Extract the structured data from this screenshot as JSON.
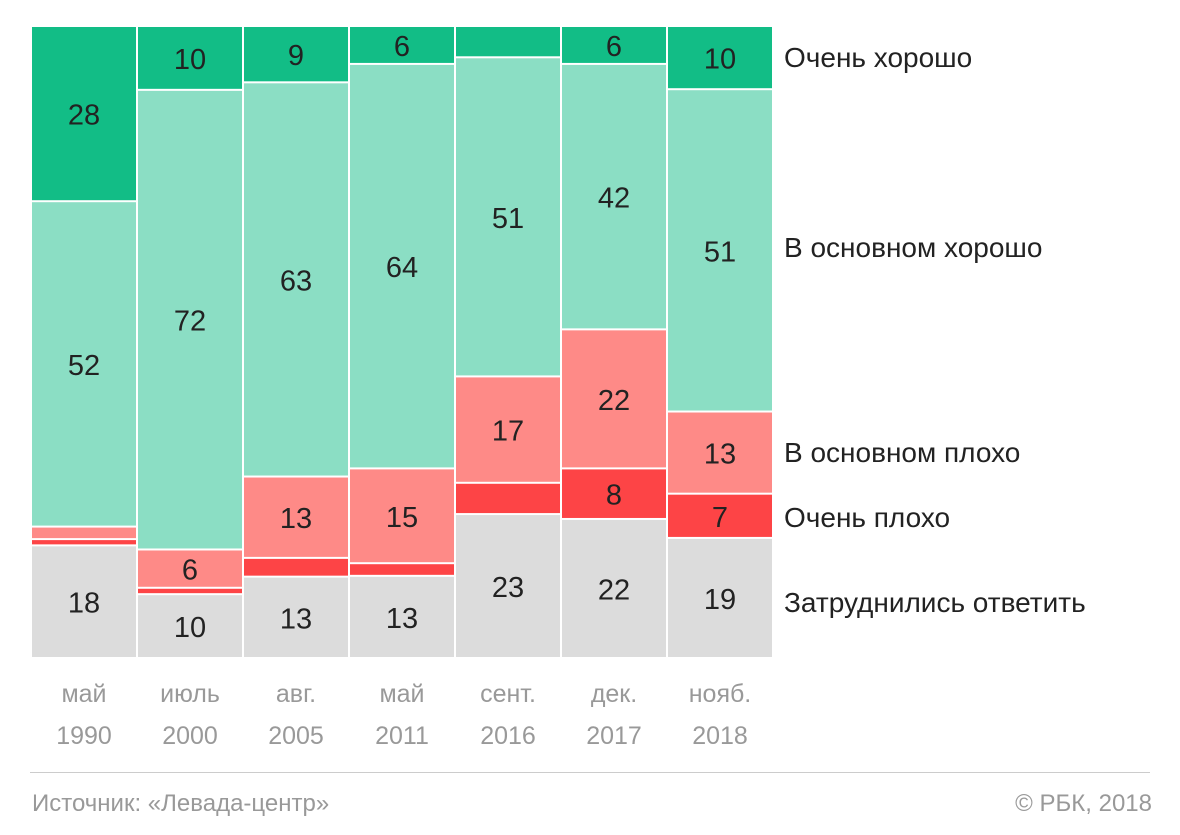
{
  "chart_data": {
    "type": "bar",
    "stacked": true,
    "normalized": true,
    "categories": [
      [
        "май",
        "1990"
      ],
      [
        "июль",
        "2000"
      ],
      [
        "авг.",
        "2005"
      ],
      [
        "май",
        "2011"
      ],
      [
        "сент.",
        "2016"
      ],
      [
        "дек.",
        "2017"
      ],
      [
        "нояб.",
        "2018"
      ]
    ],
    "series": [
      {
        "name": "Затруднились ответить",
        "color": "#dcdcdc",
        "values": [
          18,
          10,
          13,
          13,
          23,
          22,
          19
        ]
      },
      {
        "name": "Очень плохо",
        "color": "#fd4446",
        "values": [
          1,
          1,
          3,
          2,
          5,
          8,
          7
        ]
      },
      {
        "name": "В основном плохо",
        "color": "#fe8a87",
        "values": [
          2,
          6,
          13,
          15,
          17,
          22,
          13
        ]
      },
      {
        "name": "В основном хорошо",
        "color": "#8bdec4",
        "values": [
          52,
          72,
          63,
          64,
          51,
          42,
          51
        ]
      },
      {
        "name": "Очень хорошо",
        "color": "#12bd86",
        "values": [
          28,
          10,
          9,
          6,
          5,
          6,
          10
        ]
      }
    ],
    "legend_placement": "right",
    "grid": false
  },
  "footer": {
    "source": "Источник: «Левада-центр»",
    "copyright": "© РБК, 2018"
  }
}
